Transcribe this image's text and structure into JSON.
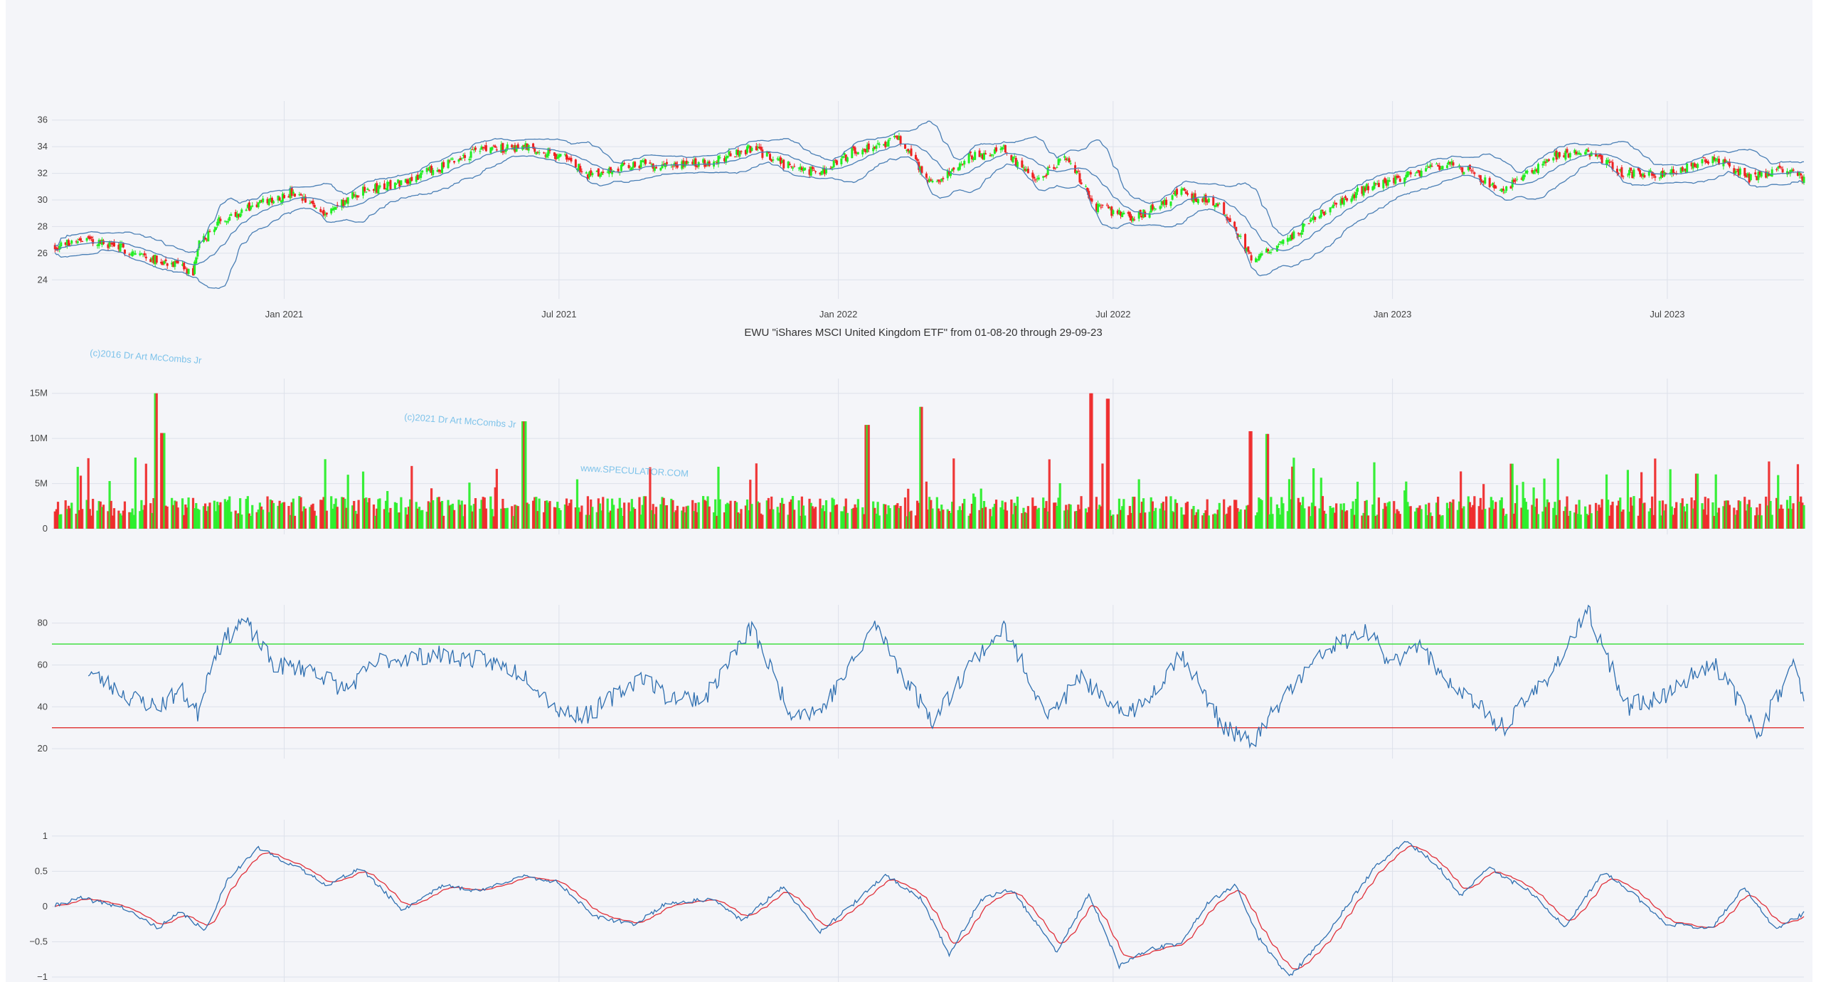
{
  "title": "EWU \"iShares MSCI United Kingdom ETF\" from 01-08-20 through 29-09-23",
  "watermarks": [
    "(c)2016 Dr Art McCombs Jr",
    "(c)2021 Dr Art McCombs Jr",
    "www.SPECULATOR.COM"
  ],
  "x_axis": {
    "range": [
      "2020-08-01",
      "2023-09-29"
    ],
    "ticks": [
      {
        "date": "2021-01-01",
        "label": "Jan 2021"
      },
      {
        "date": "2021-07-01",
        "label": "Jul 2021"
      },
      {
        "date": "2022-01-01",
        "label": "Jan 2022"
      },
      {
        "date": "2022-07-01",
        "label": "Jul 2022"
      },
      {
        "date": "2023-01-01",
        "label": "Jan 2023"
      },
      {
        "date": "2023-07-01",
        "label": "Jul 2023"
      }
    ]
  },
  "colors": {
    "up": "#22ee22",
    "down": "#ee2222",
    "bands": "#4a7fb5",
    "rsi": "#2f6fb0",
    "macd": "#2f6fb0",
    "signal": "#e0303a",
    "upper_level": "#33dd33",
    "lower_level": "#e03030",
    "grid": "#dde1ea"
  },
  "chart_data": [
    {
      "type": "candlestick",
      "name": "price",
      "ylim": [
        23,
        37
      ],
      "yticks": [
        24,
        26,
        28,
        30,
        32,
        34,
        36
      ],
      "bollinger_bands": true,
      "close_anchors": [
        [
          "2020-08-01",
          26.4
        ],
        [
          "2020-08-20",
          27.1
        ],
        [
          "2020-09-10",
          26.6
        ],
        [
          "2020-10-01",
          25.8
        ],
        [
          "2020-10-20",
          25.2
        ],
        [
          "2020-11-02",
          24.4
        ],
        [
          "2020-11-05",
          26.5
        ],
        [
          "2020-11-20",
          28.5
        ],
        [
          "2020-12-10",
          29.5
        ],
        [
          "2021-01-05",
          30.5
        ],
        [
          "2021-01-29",
          29.0
        ],
        [
          "2021-02-20",
          30.6
        ],
        [
          "2021-03-15",
          31.2
        ],
        [
          "2021-04-15",
          32.5
        ],
        [
          "2021-05-10",
          33.8
        ],
        [
          "2021-06-10",
          34.0
        ],
        [
          "2021-07-05",
          33.2
        ],
        [
          "2021-07-20",
          31.8
        ],
        [
          "2021-08-20",
          32.7
        ],
        [
          "2021-09-20",
          32.6
        ],
        [
          "2021-10-10",
          32.9
        ],
        [
          "2021-11-05",
          33.9
        ],
        [
          "2021-11-30",
          32.5
        ],
        [
          "2021-12-20",
          32.0
        ],
        [
          "2022-01-10",
          33.6
        ],
        [
          "2022-02-10",
          34.6
        ],
        [
          "2022-03-05",
          31.0
        ],
        [
          "2022-03-25",
          33.1
        ],
        [
          "2022-04-20",
          33.8
        ],
        [
          "2022-05-10",
          31.5
        ],
        [
          "2022-06-01",
          33.2
        ],
        [
          "2022-06-20",
          29.5
        ],
        [
          "2022-07-15",
          28.6
        ],
        [
          "2022-08-15",
          30.6
        ],
        [
          "2022-09-10",
          29.4
        ],
        [
          "2022-10-01",
          25.5
        ],
        [
          "2022-10-20",
          26.8
        ],
        [
          "2022-11-15",
          28.9
        ],
        [
          "2022-12-15",
          31.0
        ],
        [
          "2023-01-10",
          31.8
        ],
        [
          "2023-02-10",
          32.8
        ],
        [
          "2023-03-15",
          30.7
        ],
        [
          "2023-04-15",
          33.2
        ],
        [
          "2023-05-10",
          33.6
        ],
        [
          "2023-06-01",
          32.0
        ],
        [
          "2023-06-30",
          31.8
        ],
        [
          "2023-07-31",
          33.2
        ],
        [
          "2023-08-25",
          31.6
        ],
        [
          "2023-09-15",
          32.3
        ],
        [
          "2023-09-29",
          31.7
        ]
      ]
    },
    {
      "type": "bar",
      "name": "volume",
      "ylim": [
        0,
        16000000
      ],
      "yticks": [
        {
          "v": 0,
          "label": "0"
        },
        {
          "v": 5000000,
          "label": "5M"
        },
        {
          "v": 10000000,
          "label": "10M"
        },
        {
          "v": 15000000,
          "label": "15M"
        }
      ],
      "base_level": 2500000,
      "spikes": [
        [
          "2020-10-09",
          15000000
        ],
        [
          "2020-10-13",
          10600000
        ],
        [
          "2021-06-08",
          11900000
        ],
        [
          "2022-01-20",
          11500000
        ],
        [
          "2022-02-25",
          13500000
        ],
        [
          "2022-06-17",
          15000000
        ],
        [
          "2022-06-27",
          14400000
        ],
        [
          "2022-09-30",
          10800000
        ],
        [
          "2022-10-10",
          10500000
        ],
        [
          "2023-03-20",
          7200000
        ],
        [
          "2023-07-21",
          6100000
        ]
      ]
    },
    {
      "type": "line",
      "name": "rsi",
      "ylim": [
        18,
        86
      ],
      "yticks": [
        20,
        40,
        60,
        80
      ],
      "levels": [
        70,
        30
      ],
      "anchors": [
        [
          "2020-08-25",
          57
        ],
        [
          "2020-09-20",
          45
        ],
        [
          "2020-10-10",
          40
        ],
        [
          "2020-10-25",
          48
        ],
        [
          "2020-11-05",
          37
        ],
        [
          "2020-11-15",
          65
        ],
        [
          "2020-12-05",
          82
        ],
        [
          "2020-12-25",
          60
        ],
        [
          "2021-01-20",
          58
        ],
        [
          "2021-02-10",
          48
        ],
        [
          "2021-03-05",
          62
        ],
        [
          "2021-04-10",
          65
        ],
        [
          "2021-05-15",
          62
        ],
        [
          "2021-06-10",
          55
        ],
        [
          "2021-07-01",
          38
        ],
        [
          "2021-07-20",
          36
        ],
        [
          "2021-08-25",
          55
        ],
        [
          "2021-09-10",
          45
        ],
        [
          "2021-10-05",
          44
        ],
        [
          "2021-11-05",
          78
        ],
        [
          "2021-11-30",
          38
        ],
        [
          "2021-12-20",
          38
        ],
        [
          "2022-01-10",
          60
        ],
        [
          "2022-01-25",
          80
        ],
        [
          "2022-02-15",
          52
        ],
        [
          "2022-03-05",
          33
        ],
        [
          "2022-03-28",
          60
        ],
        [
          "2022-04-20",
          78
        ],
        [
          "2022-05-20",
          35
        ],
        [
          "2022-06-10",
          55
        ],
        [
          "2022-06-30",
          38
        ],
        [
          "2022-07-20",
          40
        ],
        [
          "2022-08-15",
          66
        ],
        [
          "2022-09-10",
          32
        ],
        [
          "2022-09-30",
          22
        ],
        [
          "2022-10-25",
          48
        ],
        [
          "2022-11-20",
          68
        ],
        [
          "2022-12-15",
          76
        ],
        [
          "2023-01-01",
          60
        ],
        [
          "2023-01-15",
          72
        ],
        [
          "2023-02-10",
          50
        ],
        [
          "2023-03-15",
          30
        ],
        [
          "2023-04-15",
          56
        ],
        [
          "2023-05-10",
          85
        ],
        [
          "2023-06-05",
          40
        ],
        [
          "2023-07-01",
          46
        ],
        [
          "2023-07-31",
          62
        ],
        [
          "2023-08-30",
          28
        ],
        [
          "2023-09-22",
          60
        ],
        [
          "2023-09-29",
          44
        ]
      ]
    },
    {
      "type": "line",
      "name": "macd",
      "ylim": [
        -1.05,
        1.15
      ],
      "yticks": [
        {
          "v": -1,
          "label": "−1"
        },
        {
          "v": -0.5,
          "label": "−0.5"
        },
        {
          "v": 0,
          "label": "0"
        },
        {
          "v": 0.5,
          "label": "0.5"
        },
        {
          "v": 1,
          "label": "1"
        }
      ],
      "anchors": [
        [
          "2020-08-01",
          0.0
        ],
        [
          "2020-08-20",
          0.12
        ],
        [
          "2020-09-15",
          0.0
        ],
        [
          "2020-10-10",
          -0.3
        ],
        [
          "2020-10-25",
          -0.08
        ],
        [
          "2020-11-10",
          -0.35
        ],
        [
          "2020-11-25",
          0.4
        ],
        [
          "2020-12-15",
          0.83
        ],
        [
          "2021-01-10",
          0.55
        ],
        [
          "2021-01-30",
          0.3
        ],
        [
          "2021-02-20",
          0.55
        ],
        [
          "2021-03-20",
          -0.05
        ],
        [
          "2021-04-15",
          0.3
        ],
        [
          "2021-05-10",
          0.22
        ],
        [
          "2021-06-05",
          0.43
        ],
        [
          "2021-06-30",
          0.35
        ],
        [
          "2021-07-25",
          -0.15
        ],
        [
          "2021-08-20",
          -0.25
        ],
        [
          "2021-09-10",
          0.05
        ],
        [
          "2021-10-10",
          0.1
        ],
        [
          "2021-10-30",
          -0.2
        ],
        [
          "2021-11-25",
          0.28
        ],
        [
          "2021-12-20",
          -0.35
        ],
        [
          "2022-01-10",
          0.02
        ],
        [
          "2022-02-01",
          0.45
        ],
        [
          "2022-02-25",
          0.1
        ],
        [
          "2022-03-15",
          -0.68
        ],
        [
          "2022-04-05",
          0.1
        ],
        [
          "2022-04-25",
          0.25
        ],
        [
          "2022-05-25",
          -0.65
        ],
        [
          "2022-06-15",
          0.18
        ],
        [
          "2022-07-05",
          -0.85
        ],
        [
          "2022-07-25",
          -0.6
        ],
        [
          "2022-08-15",
          -0.52
        ],
        [
          "2022-09-01",
          0.05
        ],
        [
          "2022-09-20",
          0.3
        ],
        [
          "2022-10-05",
          -0.45
        ],
        [
          "2022-10-25",
          -1.0
        ],
        [
          "2022-11-15",
          -0.5
        ],
        [
          "2022-12-20",
          0.55
        ],
        [
          "2023-01-10",
          0.92
        ],
        [
          "2023-01-30",
          0.6
        ],
        [
          "2023-02-15",
          0.15
        ],
        [
          "2023-03-05",
          0.55
        ],
        [
          "2023-04-01",
          0.22
        ],
        [
          "2023-04-25",
          -0.3
        ],
        [
          "2023-05-20",
          0.5
        ],
        [
          "2023-06-10",
          0.15
        ],
        [
          "2023-07-01",
          -0.25
        ],
        [
          "2023-07-31",
          -0.3
        ],
        [
          "2023-08-20",
          0.28
        ],
        [
          "2023-09-10",
          -0.32
        ],
        [
          "2023-09-29",
          -0.1
        ]
      ]
    }
  ]
}
